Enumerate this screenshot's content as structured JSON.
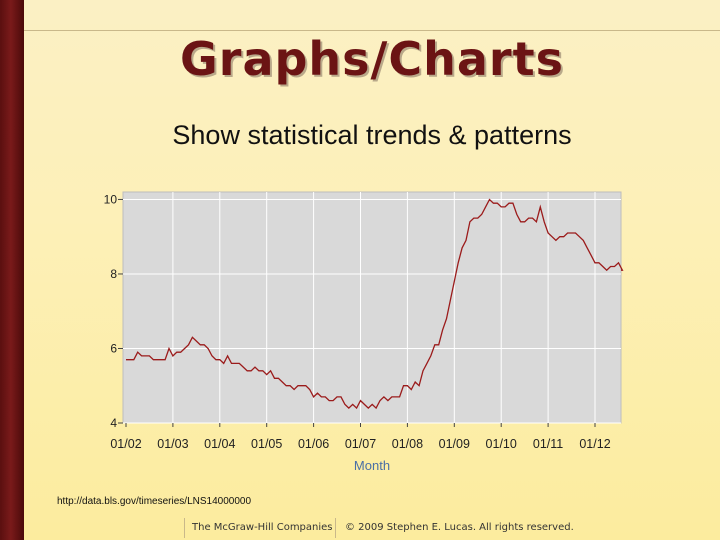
{
  "slide": {
    "title": "Graphs/Charts",
    "subtitle": "Show statistical trends & patterns",
    "source_url": "http://data.bls.gov/timeseries/LNS14000000",
    "footer_left": "The McGraw-Hill Companies",
    "footer_right": "© 2009 Stephen E. Lucas. All rights reserved."
  },
  "colors": {
    "title": "#6b1414",
    "left_bar": "#5a0f0f",
    "plot_background": "#d9d9d9",
    "line": "#9b1b1b",
    "axis_label": "#4a6fa5"
  },
  "chart_data": {
    "type": "line",
    "title": "",
    "xlabel": "Month",
    "ylabel": "",
    "x_ticks": [
      "01/02",
      "01/03",
      "01/04",
      "01/05",
      "01/06",
      "01/07",
      "01/08",
      "01/09",
      "01/10",
      "01/11",
      "01/12"
    ],
    "y_ticks": [
      4,
      6,
      8,
      10
    ],
    "ylim": [
      4,
      10.2
    ],
    "xlim": [
      "2002-01",
      "2012-08"
    ],
    "grid": true,
    "series": [
      {
        "points": [
          [
            "2002-01",
            5.7
          ],
          [
            "2002-02",
            5.7
          ],
          [
            "2002-03",
            5.7
          ],
          [
            "2002-04",
            5.9
          ],
          [
            "2002-05",
            5.8
          ],
          [
            "2002-06",
            5.8
          ],
          [
            "2002-07",
            5.8
          ],
          [
            "2002-08",
            5.7
          ],
          [
            "2002-09",
            5.7
          ],
          [
            "2002-10",
            5.7
          ],
          [
            "2002-11",
            5.7
          ],
          [
            "2002-12",
            6.0
          ],
          [
            "2003-01",
            5.8
          ],
          [
            "2003-02",
            5.9
          ],
          [
            "2003-03",
            5.9
          ],
          [
            "2003-04",
            6.0
          ],
          [
            "2003-05",
            6.1
          ],
          [
            "2003-06",
            6.3
          ],
          [
            "2003-07",
            6.2
          ],
          [
            "2003-08",
            6.1
          ],
          [
            "2003-09",
            6.1
          ],
          [
            "2003-10",
            6.0
          ],
          [
            "2003-11",
            5.8
          ],
          [
            "2003-12",
            5.7
          ],
          [
            "2004-01",
            5.7
          ],
          [
            "2004-02",
            5.6
          ],
          [
            "2004-03",
            5.8
          ],
          [
            "2004-04",
            5.6
          ],
          [
            "2004-05",
            5.6
          ],
          [
            "2004-06",
            5.6
          ],
          [
            "2004-07",
            5.5
          ],
          [
            "2004-08",
            5.4
          ],
          [
            "2004-09",
            5.4
          ],
          [
            "2004-10",
            5.5
          ],
          [
            "2004-11",
            5.4
          ],
          [
            "2004-12",
            5.4
          ],
          [
            "2005-01",
            5.3
          ],
          [
            "2005-02",
            5.4
          ],
          [
            "2005-03",
            5.2
          ],
          [
            "2005-04",
            5.2
          ],
          [
            "2005-05",
            5.1
          ],
          [
            "2005-06",
            5.0
          ],
          [
            "2005-07",
            5.0
          ],
          [
            "2005-08",
            4.9
          ],
          [
            "2005-09",
            5.0
          ],
          [
            "2005-10",
            5.0
          ],
          [
            "2005-11",
            5.0
          ],
          [
            "2005-12",
            4.9
          ],
          [
            "2006-01",
            4.7
          ],
          [
            "2006-02",
            4.8
          ],
          [
            "2006-03",
            4.7
          ],
          [
            "2006-04",
            4.7
          ],
          [
            "2006-05",
            4.6
          ],
          [
            "2006-06",
            4.6
          ],
          [
            "2006-07",
            4.7
          ],
          [
            "2006-08",
            4.7
          ],
          [
            "2006-09",
            4.5
          ],
          [
            "2006-10",
            4.4
          ],
          [
            "2006-11",
            4.5
          ],
          [
            "2006-12",
            4.4
          ],
          [
            "2007-01",
            4.6
          ],
          [
            "2007-02",
            4.5
          ],
          [
            "2007-03",
            4.4
          ],
          [
            "2007-04",
            4.5
          ],
          [
            "2007-05",
            4.4
          ],
          [
            "2007-06",
            4.6
          ],
          [
            "2007-07",
            4.7
          ],
          [
            "2007-08",
            4.6
          ],
          [
            "2007-09",
            4.7
          ],
          [
            "2007-10",
            4.7
          ],
          [
            "2007-11",
            4.7
          ],
          [
            "2007-12",
            5.0
          ],
          [
            "2008-01",
            5.0
          ],
          [
            "2008-02",
            4.9
          ],
          [
            "2008-03",
            5.1
          ],
          [
            "2008-04",
            5.0
          ],
          [
            "2008-05",
            5.4
          ],
          [
            "2008-06",
            5.6
          ],
          [
            "2008-07",
            5.8
          ],
          [
            "2008-08",
            6.1
          ],
          [
            "2008-09",
            6.1
          ],
          [
            "2008-10",
            6.5
          ],
          [
            "2008-11",
            6.8
          ],
          [
            "2008-12",
            7.3
          ],
          [
            "2009-01",
            7.8
          ],
          [
            "2009-02",
            8.3
          ],
          [
            "2009-03",
            8.7
          ],
          [
            "2009-04",
            8.9
          ],
          [
            "2009-05",
            9.4
          ],
          [
            "2009-06",
            9.5
          ],
          [
            "2009-07",
            9.5
          ],
          [
            "2009-08",
            9.6
          ],
          [
            "2009-09",
            9.8
          ],
          [
            "2009-10",
            10.0
          ],
          [
            "2009-11",
            9.9
          ],
          [
            "2009-12",
            9.9
          ],
          [
            "2010-01",
            9.8
          ],
          [
            "2010-02",
            9.8
          ],
          [
            "2010-03",
            9.9
          ],
          [
            "2010-04",
            9.9
          ],
          [
            "2010-05",
            9.6
          ],
          [
            "2010-06",
            9.4
          ],
          [
            "2010-07",
            9.4
          ],
          [
            "2010-08",
            9.5
          ],
          [
            "2010-09",
            9.5
          ],
          [
            "2010-10",
            9.4
          ],
          [
            "2010-11",
            9.8
          ],
          [
            "2010-12",
            9.4
          ],
          [
            "2011-01",
            9.1
          ],
          [
            "2011-02",
            9.0
          ],
          [
            "2011-03",
            8.9
          ],
          [
            "2011-04",
            9.0
          ],
          [
            "2011-05",
            9.0
          ],
          [
            "2011-06",
            9.1
          ],
          [
            "2011-07",
            9.1
          ],
          [
            "2011-08",
            9.1
          ],
          [
            "2011-09",
            9.0
          ],
          [
            "2011-10",
            8.9
          ],
          [
            "2011-11",
            8.7
          ],
          [
            "2011-12",
            8.5
          ],
          [
            "2012-01",
            8.3
          ],
          [
            "2012-02",
            8.3
          ],
          [
            "2012-03",
            8.2
          ],
          [
            "2012-04",
            8.1
          ],
          [
            "2012-05",
            8.2
          ],
          [
            "2012-06",
            8.2
          ],
          [
            "2012-07",
            8.3
          ],
          [
            "2012-08",
            8.1
          ]
        ]
      }
    ]
  }
}
